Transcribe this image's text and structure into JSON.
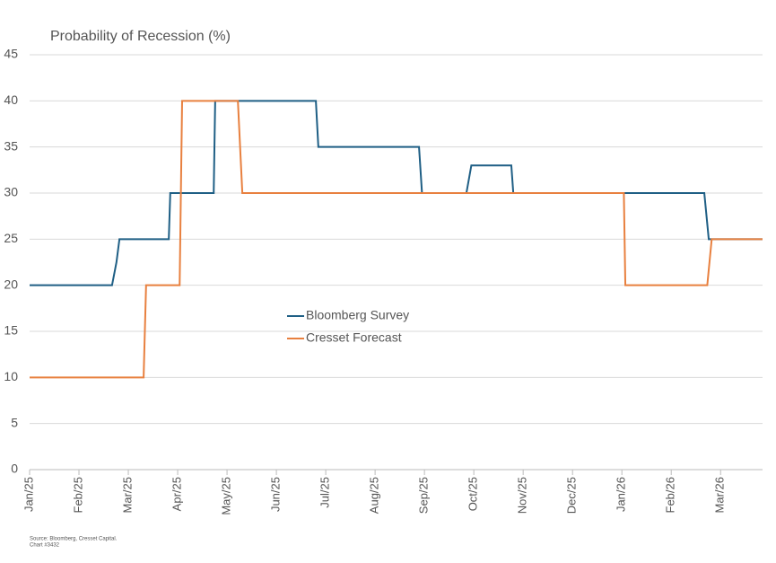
{
  "chart_data": {
    "type": "line",
    "title": "Probability of Recession (%)",
    "source": "Source: Bloomberg, Cresset Capital.",
    "chart_id": "Chart #3432",
    "xlim": [
      0,
      14.85
    ],
    "xticks": [
      {
        "value": 0,
        "label": "Jan/25"
      },
      {
        "value": 1,
        "label": "Feb/25"
      },
      {
        "value": 2,
        "label": "Mar/25"
      },
      {
        "value": 3,
        "label": "Apr/25"
      },
      {
        "value": 4,
        "label": "May/25"
      },
      {
        "value": 5,
        "label": "Jun/25"
      },
      {
        "value": 6,
        "label": "Jul/25"
      },
      {
        "value": 7,
        "label": "Aug/25"
      },
      {
        "value": 8,
        "label": "Sep/25"
      },
      {
        "value": 9,
        "label": "Oct/25"
      },
      {
        "value": 10,
        "label": "Nov/25"
      },
      {
        "value": 11,
        "label": "Dec/25"
      },
      {
        "value": 12,
        "label": "Jan/26"
      },
      {
        "value": 13,
        "label": "Feb/26"
      },
      {
        "value": 14,
        "label": "Mar/26"
      }
    ],
    "ylim": [
      0,
      45
    ],
    "yticks": [
      0,
      5,
      10,
      15,
      20,
      25,
      30,
      35,
      40,
      45
    ],
    "grid": true,
    "series": [
      {
        "name": "Bloomberg Survey",
        "color": "#1f5f85",
        "x": [
          0,
          1.67,
          1.76,
          1.82,
          2.82,
          2.85,
          3.73,
          3.76,
          5.8,
          5.85,
          7.89,
          7.95,
          8.85,
          8.95,
          9.76,
          9.8,
          13.67,
          13.76,
          14.85
        ],
        "values": [
          20,
          20,
          22.5,
          25,
          25,
          30,
          30,
          40,
          40,
          35,
          35,
          30,
          30,
          33,
          33,
          30,
          30,
          25,
          25
        ]
      },
      {
        "name": "Cresset Forecast",
        "color": "#e8803f",
        "x": [
          0,
          2.31,
          2.36,
          3.04,
          3.09,
          4.22,
          4.31,
          12.04,
          12.07,
          13.73,
          13.82,
          14.85
        ],
        "values": [
          10,
          10,
          20,
          20,
          40,
          40,
          30,
          30,
          20,
          20,
          25,
          25
        ]
      }
    ]
  }
}
